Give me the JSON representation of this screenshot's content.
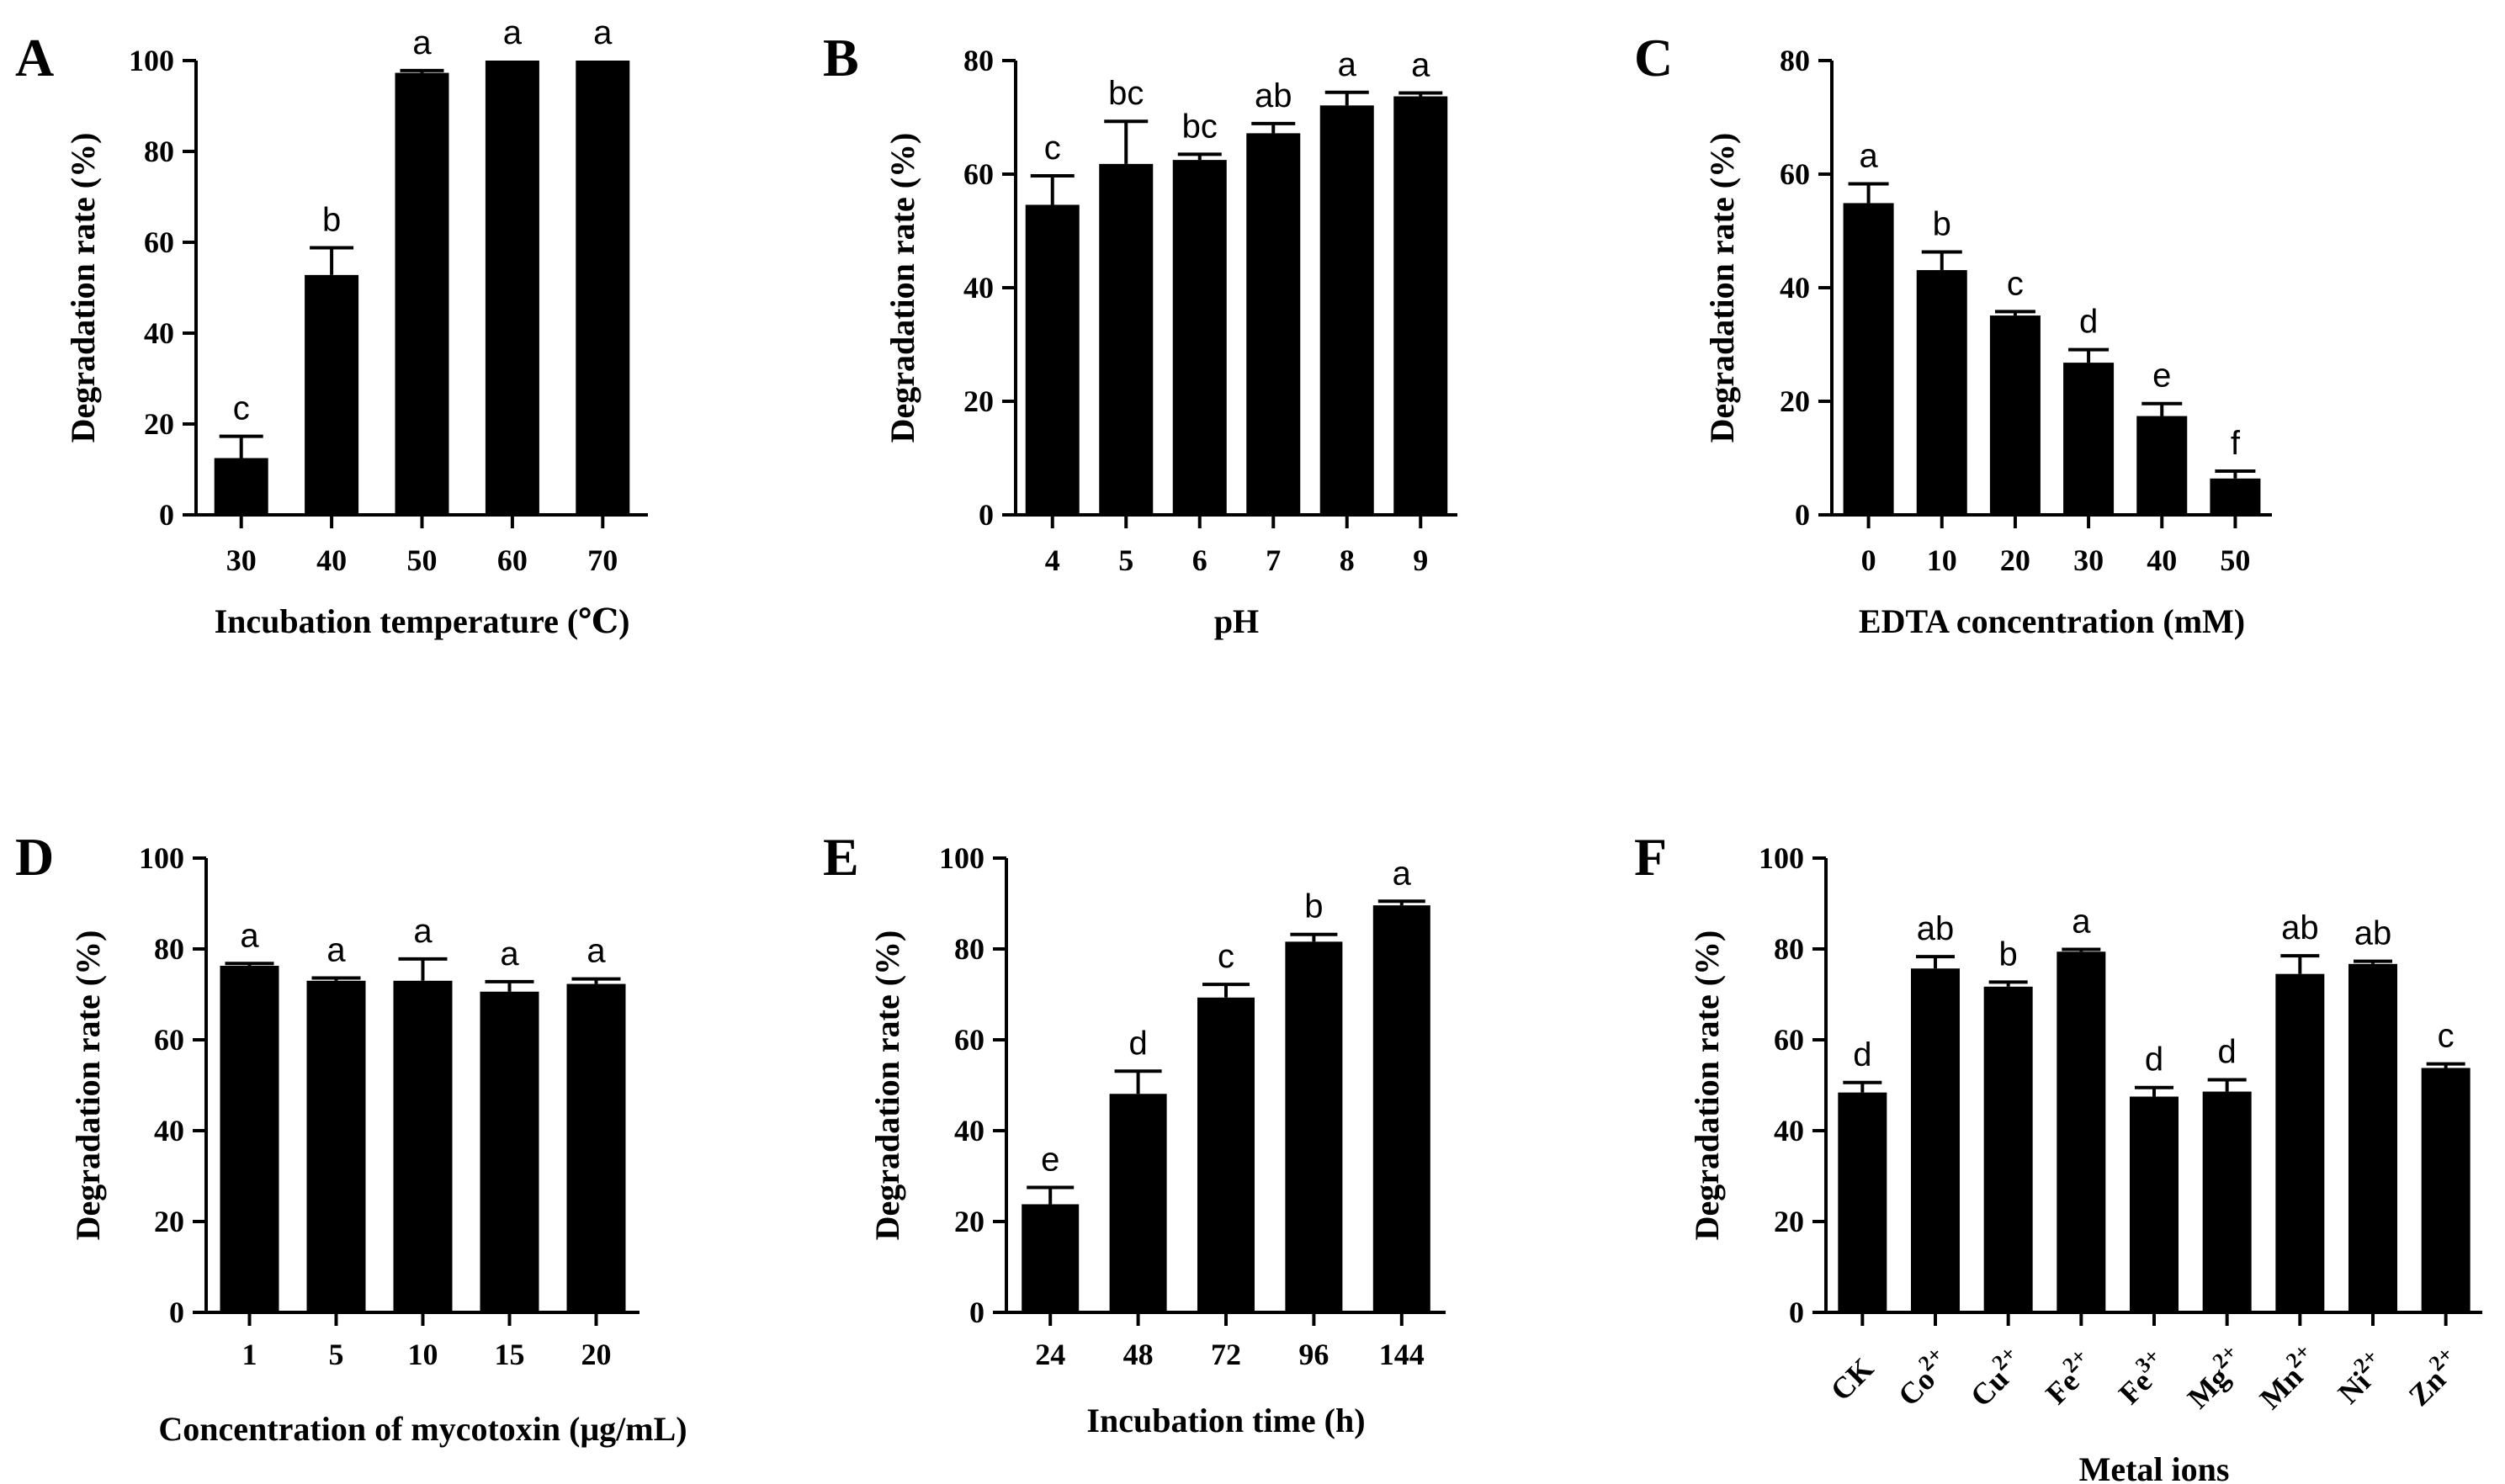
{
  "chart_data": [
    {
      "panel": "A",
      "type": "bar",
      "xlabel": "Incubation temperature (℃)",
      "ylabel": "Degradation rate (%)",
      "ylim": [
        0,
        100
      ],
      "yticks": [
        0,
        20,
        40,
        60,
        80,
        100
      ],
      "categories": [
        "30",
        "40",
        "50",
        "60",
        "70"
      ],
      "values": [
        12.5,
        52.8,
        97.3,
        100,
        100
      ],
      "errors": [
        4.8,
        6.0,
        0.5,
        0,
        0
      ],
      "letters": [
        "c",
        "b",
        "a",
        "a",
        "a"
      ]
    },
    {
      "panel": "B",
      "type": "bar",
      "xlabel": "pH",
      "ylabel": "Degradation rate (%)",
      "ylim": [
        0,
        80
      ],
      "yticks": [
        0,
        20,
        40,
        60,
        80
      ],
      "categories": [
        "4",
        "5",
        "6",
        "7",
        "8",
        "9"
      ],
      "values": [
        54.6,
        61.8,
        62.5,
        67.2,
        72.1,
        73.7
      ],
      "errors": [
        5.1,
        7.5,
        1.0,
        1.7,
        2.3,
        0.6
      ],
      "letters": [
        "c",
        "bc",
        "bc",
        "ab",
        "a",
        "a"
      ]
    },
    {
      "panel": "C",
      "type": "bar",
      "xlabel": "EDTA concentration (mM)",
      "ylabel": "Degradation rate (%)",
      "ylim": [
        0,
        80
      ],
      "yticks": [
        0,
        20,
        40,
        60,
        80
      ],
      "categories": [
        "0",
        "10",
        "20",
        "30",
        "40",
        "50"
      ],
      "values": [
        54.9,
        43.1,
        35.1,
        26.8,
        17.4,
        6.4
      ],
      "errors": [
        3.4,
        3.2,
        0.7,
        2.3,
        2.2,
        1.3
      ],
      "letters": [
        "a",
        "b",
        "c",
        "d",
        "e",
        "f"
      ]
    },
    {
      "panel": "D",
      "type": "bar",
      "xlabel": "Concentration of mycotoxin (μg/mL)",
      "ylabel": "Degradation rate (%)",
      "ylim": [
        0,
        100
      ],
      "yticks": [
        0,
        20,
        40,
        60,
        80,
        100
      ],
      "categories": [
        "1",
        "5",
        "10",
        "15",
        "20"
      ],
      "values": [
        76.3,
        73.0,
        73.0,
        70.6,
        72.3
      ],
      "errors": [
        0.5,
        0.6,
        4.8,
        2.2,
        1.1
      ],
      "letters": [
        "a",
        "a",
        "a",
        "a",
        "a"
      ]
    },
    {
      "panel": "E",
      "type": "bar",
      "xlabel": "Incubation time (h)",
      "ylabel": "Degradation rate (%)",
      "ylim": [
        0,
        100
      ],
      "yticks": [
        0,
        20,
        40,
        60,
        80,
        100
      ],
      "categories": [
        "24",
        "48",
        "72",
        "96",
        "144"
      ],
      "values": [
        23.8,
        48.1,
        69.3,
        81.6,
        89.6
      ],
      "errors": [
        3.7,
        5.0,
        2.9,
        1.6,
        0.9
      ],
      "letters": [
        "e",
        "d",
        "c",
        "b",
        "a"
      ]
    },
    {
      "panel": "F",
      "type": "bar",
      "xlabel": "Metal ions",
      "ylabel": "Degradation rate (%)",
      "ylim": [
        0,
        100
      ],
      "yticks": [
        0,
        20,
        40,
        60,
        80,
        100
      ],
      "categories": [
        {
          "base": "CK",
          "sup": ""
        },
        {
          "base": "Co",
          "sup": "2+"
        },
        {
          "base": "Cu",
          "sup": "2+"
        },
        {
          "base": "Fe",
          "sup": "2+"
        },
        {
          "base": "Fe",
          "sup": "3+"
        },
        {
          "base": "Mg",
          "sup": "2+"
        },
        {
          "base": "Mn",
          "sup": "2+"
        },
        {
          "base": "Ni",
          "sup": "2+"
        },
        {
          "base": "Zn",
          "sup": "2+"
        }
      ],
      "values": [
        48.4,
        75.7,
        71.7,
        79.4,
        47.5,
        48.6,
        74.5,
        76.7,
        53.8
      ],
      "errors": [
        2.2,
        2.6,
        1.0,
        0.5,
        2.0,
        2.6,
        4.0,
        0.6,
        0.9
      ],
      "letters": [
        "d",
        "ab",
        "b",
        "a",
        "d",
        "d",
        "ab",
        "ab",
        "c"
      ]
    }
  ]
}
